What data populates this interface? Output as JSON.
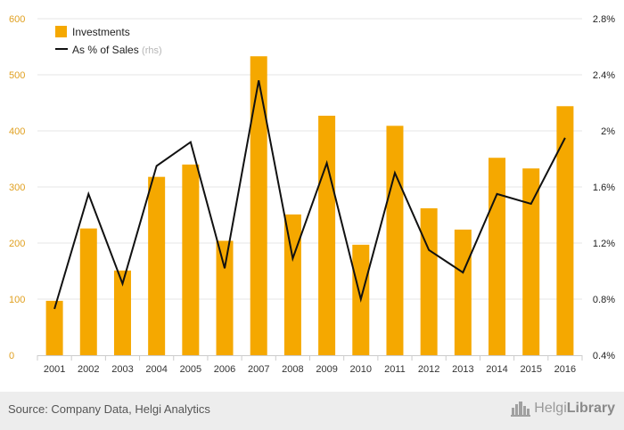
{
  "chart_data": {
    "type": "bar+line",
    "categories": [
      "2001",
      "2002",
      "2003",
      "2004",
      "2005",
      "2006",
      "2007",
      "2008",
      "2009",
      "2010",
      "2011",
      "2012",
      "2013",
      "2014",
      "2015",
      "2016"
    ],
    "series": [
      {
        "name": "Investments",
        "type": "bar",
        "axis": "left",
        "values": [
          97,
          226,
          151,
          318,
          340,
          204,
          533,
          251,
          427,
          197,
          409,
          262,
          224,
          352,
          333,
          444
        ]
      },
      {
        "name": "As % of Sales",
        "name_suffix": "(rhs)",
        "type": "line",
        "axis": "right",
        "values": [
          0.73,
          1.55,
          0.91,
          1.75,
          1.92,
          1.02,
          2.36,
          1.09,
          1.77,
          0.8,
          1.7,
          1.15,
          0.99,
          1.55,
          1.48,
          1.95
        ]
      }
    ],
    "y_left": {
      "min": 0,
      "max": 600,
      "ticks": [
        0,
        100,
        200,
        300,
        400,
        500,
        600
      ],
      "tick_labels": [
        "0",
        "100",
        "200",
        "300",
        "400",
        "500",
        "600"
      ]
    },
    "y_right": {
      "min": 0.4,
      "max": 2.8,
      "ticks": [
        0.4,
        0.8,
        1.2,
        1.6,
        2.0,
        2.4,
        2.8
      ],
      "tick_labels": [
        "0.4%",
        "0.8%",
        "1.2%",
        "1.6%",
        "2%",
        "2.4%",
        "2.8%"
      ]
    },
    "grid": true,
    "legend_position": "top-left",
    "colors": {
      "bar": "#f5a800",
      "line": "#111111",
      "left_axis_text": "#e0a020",
      "right_axis_text": "#222222",
      "grid": "#e6e6e6"
    }
  },
  "footer": {
    "source": "Source: Company Data, Helgi Analytics",
    "brand_light": "Helgi",
    "brand_bold": "Library",
    "brand_icon": "city-skyline-icon"
  }
}
